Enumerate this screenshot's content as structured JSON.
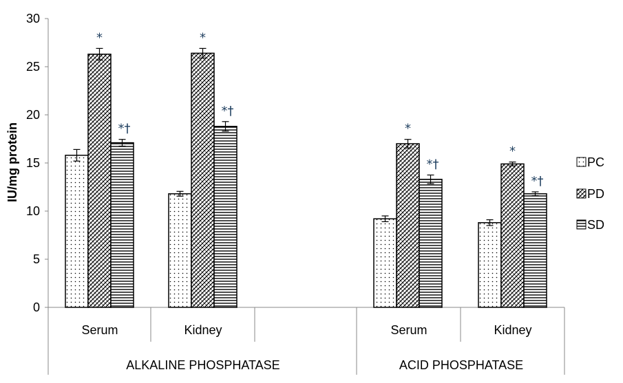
{
  "chart_data": {
    "type": "bar",
    "title": "",
    "ylabel": "IU/mg protein",
    "ylim": [
      0,
      30
    ],
    "yticks": [
      "0",
      "5",
      "10",
      "15",
      "20",
      "25",
      "30"
    ],
    "groups": [
      "ALKALINE PHOSPHATASE",
      "ACID PHOSPHATASE"
    ],
    "categories": [
      "Serum",
      "Kidney",
      "Serum",
      "Kidney"
    ],
    "series": [
      {
        "name": "PC",
        "pattern": "dots",
        "values": [
          15.8,
          11.8,
          9.2,
          8.8
        ],
        "errors": [
          0.6,
          0.25,
          0.3,
          0.3
        ],
        "marks": [
          "",
          "",
          "",
          ""
        ]
      },
      {
        "name": "PD",
        "pattern": "crosshatch",
        "values": [
          26.3,
          26.4,
          17.0,
          14.9
        ],
        "errors": [
          0.6,
          0.5,
          0.45,
          0.2
        ],
        "marks": [
          "*",
          "*",
          "*",
          "*"
        ]
      },
      {
        "name": "SD",
        "pattern": "hlines",
        "values": [
          17.1,
          18.8,
          13.3,
          11.8
        ],
        "errors": [
          0.35,
          0.5,
          0.45,
          0.2
        ],
        "marks": [
          "*†",
          "*†",
          "*†",
          "*†"
        ]
      }
    ],
    "legend_position": "right",
    "grid": false,
    "colors": {
      "bar_fill": "#ffffff",
      "bar_stroke": "#000000",
      "significance_mark": "#1f3f5f"
    }
  }
}
